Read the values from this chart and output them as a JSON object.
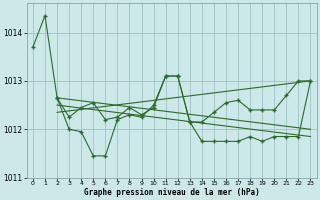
{
  "background_color": "#cce8e8",
  "grid_color": "#99bbbb",
  "line_color": "#2d6a2d",
  "title": "Graphe pression niveau de la mer (hPa)",
  "ylim": [
    1011.0,
    1014.6
  ],
  "xlim": [
    -0.5,
    23.5
  ],
  "yticks": [
    1011,
    1012,
    1013,
    1014
  ],
  "xtick_labels": [
    "0",
    "1",
    "2",
    "3",
    "4",
    "5",
    "6",
    "7",
    "8",
    "9",
    "10",
    "11",
    "12",
    "13",
    "14",
    "15",
    "16",
    "17",
    "18",
    "19",
    "20",
    "21",
    "22",
    "23"
  ],
  "series1_x": [
    0,
    1,
    2,
    3,
    4,
    5,
    6,
    7,
    8,
    9,
    10,
    11,
    12,
    13,
    14,
    15,
    16,
    17,
    18,
    19,
    20,
    21,
    22,
    23
  ],
  "series1_y": [
    1013.7,
    1014.35,
    1012.65,
    1012.0,
    1011.95,
    1011.45,
    1011.45,
    1012.2,
    1012.3,
    1012.25,
    1012.5,
    1013.1,
    1013.1,
    1012.15,
    1011.75,
    1011.75,
    1011.75,
    1011.75,
    1011.85,
    1011.75,
    1011.85,
    1011.85,
    1011.85,
    1013.0
  ],
  "series2_x": [
    2,
    3,
    4,
    5,
    6,
    7,
    8,
    9,
    10,
    11,
    12,
    13,
    14,
    15,
    16,
    17,
    18,
    19,
    20,
    21,
    22,
    23
  ],
  "series2_y": [
    1012.65,
    1012.25,
    1012.45,
    1012.55,
    1012.2,
    1012.25,
    1012.45,
    1012.3,
    1012.45,
    1013.1,
    1013.1,
    1012.15,
    1012.15,
    1012.35,
    1012.55,
    1012.6,
    1012.4,
    1012.4,
    1012.4,
    1012.7,
    1013.0,
    1013.0
  ],
  "series3_x": [
    2,
    23
  ],
  "series3_y": [
    1012.65,
    1012.0
  ],
  "series4_x": [
    2,
    23
  ],
  "series4_y": [
    1012.5,
    1011.85
  ],
  "series5_x": [
    2,
    23
  ],
  "series5_y": [
    1012.35,
    1013.0
  ]
}
